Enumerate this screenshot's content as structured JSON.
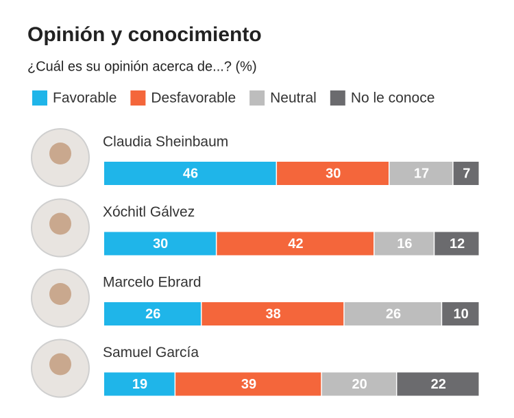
{
  "chart_data": {
    "type": "bar",
    "orientation": "horizontal",
    "stacked": true,
    "title": "Opinión y conocimiento",
    "subtitle": "¿Cuál es su opinión acerca de...? (%)",
    "categories": [
      "Claudia Sheinbaum",
      "Xóchitl Gálvez",
      "Marcelo Ebrard",
      "Samuel García"
    ],
    "xlim": [
      0,
      100
    ],
    "series": [
      {
        "name": "Favorable",
        "color": "#1fb5e9",
        "values": [
          46,
          30,
          26,
          19
        ]
      },
      {
        "name": "Desfavorable",
        "color": "#f4663b",
        "values": [
          30,
          42,
          38,
          39
        ]
      },
      {
        "name": "Neutral",
        "color": "#bdbdbd",
        "values": [
          17,
          16,
          26,
          20
        ]
      },
      {
        "name": "No le conoce",
        "color": "#6b6b6e",
        "values": [
          7,
          12,
          10,
          22
        ]
      }
    ]
  }
}
